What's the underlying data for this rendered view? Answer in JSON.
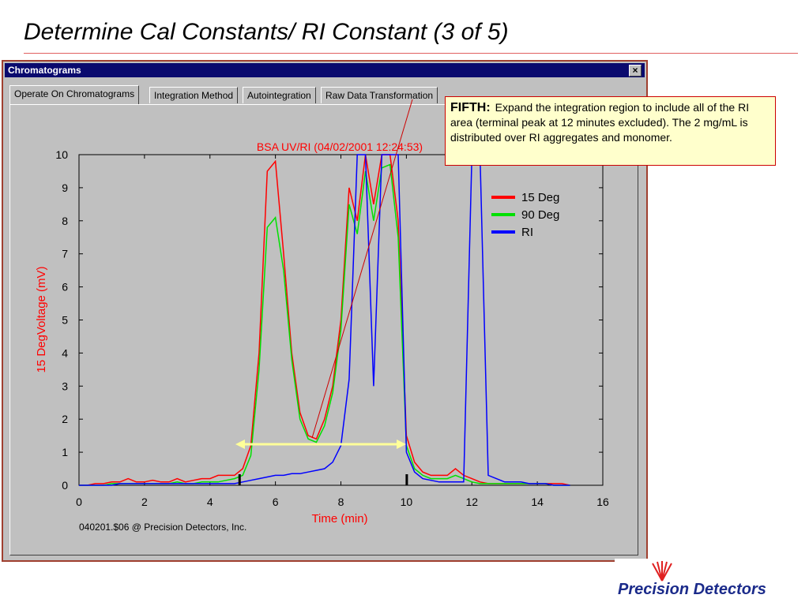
{
  "slide": {
    "title": "Determine Cal Constants/ RI Constant  (3 of 5)"
  },
  "window": {
    "title": "Chromatograms",
    "close": "×",
    "tabs": [
      "Operate On Chromatograms",
      "Integration Method",
      "Autointegration",
      "Raw Data Transformation"
    ],
    "footer": "040201.$06  @ Precision Detectors, Inc."
  },
  "chart_data": {
    "type": "line",
    "title": "BSA UV/RI (04/02/2001 12:24:53)",
    "x_label": "Time (min)",
    "y_label": "15 DegVoltage (mV)",
    "xlim": [
      0,
      16
    ],
    "ylim": [
      0,
      10
    ],
    "xticks": [
      0,
      2,
      4,
      6,
      8,
      10,
      12,
      14,
      16
    ],
    "yticks": [
      0,
      1,
      2,
      3,
      4,
      5,
      6,
      7,
      8,
      9,
      10
    ],
    "x": [
      0,
      0.25,
      0.5,
      0.75,
      1,
      1.25,
      1.5,
      1.75,
      2,
      2.25,
      2.5,
      2.75,
      3,
      3.25,
      3.5,
      3.75,
      4,
      4.25,
      4.5,
      4.75,
      5,
      5.25,
      5.5,
      5.75,
      6,
      6.25,
      6.5,
      6.75,
      7,
      7.25,
      7.5,
      7.75,
      8,
      8.25,
      8.5,
      8.75,
      9,
      9.25,
      9.5,
      9.75,
      10,
      10.25,
      10.5,
      10.75,
      11,
      11.25,
      11.5,
      11.75,
      12,
      12.25,
      12.5,
      12.75,
      13,
      13.25,
      13.5,
      13.75,
      14,
      14.25,
      14.5,
      14.75,
      15
    ],
    "series": [
      {
        "name": "15 Deg",
        "color": "#ff0000",
        "values": [
          0,
          0,
          0.05,
          0.05,
          0.1,
          0.1,
          0.2,
          0.1,
          0.1,
          0.15,
          0.1,
          0.1,
          0.2,
          0.1,
          0.15,
          0.2,
          0.2,
          0.3,
          0.3,
          0.3,
          0.5,
          1.2,
          4,
          9.5,
          9.8,
          7,
          4,
          2.2,
          1.5,
          1.4,
          2,
          3,
          5,
          9,
          8,
          10,
          8.5,
          10,
          10,
          8,
          1.5,
          0.7,
          0.4,
          0.3,
          0.3,
          0.3,
          0.5,
          0.3,
          0.2,
          0.1,
          0.05,
          0.05,
          0.05,
          0.05,
          0.05,
          0.05,
          0.05,
          0.05,
          0.05,
          0.05,
          0
        ]
      },
      {
        "name": "90 Deg",
        "color": "#00e000",
        "values": [
          0,
          0,
          0,
          0,
          0.05,
          0.05,
          0.05,
          0.05,
          0.05,
          0.05,
          0.05,
          0.05,
          0.1,
          0.05,
          0.05,
          0.1,
          0.1,
          0.1,
          0.15,
          0.2,
          0.3,
          0.9,
          3.5,
          7.8,
          8.1,
          6.5,
          3.8,
          2,
          1.4,
          1.3,
          1.8,
          2.8,
          4.7,
          8.5,
          7.6,
          9.5,
          8,
          9.6,
          9.7,
          7.5,
          1.2,
          0.5,
          0.3,
          0.2,
          0.2,
          0.2,
          0.3,
          0.2,
          0.1,
          0.05,
          0.05,
          0.05,
          0.05,
          0.05,
          0.05,
          0.05,
          0.05,
          0.05,
          0,
          0,
          0
        ]
      },
      {
        "name": "RI",
        "color": "#0000ff",
        "values": [
          0,
          0,
          0,
          0,
          0,
          0.05,
          0.05,
          0.05,
          0.05,
          0.05,
          0.05,
          0.05,
          0.05,
          0.05,
          0.05,
          0.05,
          0.05,
          0.05,
          0.05,
          0.05,
          0.1,
          0.15,
          0.2,
          0.25,
          0.3,
          0.3,
          0.35,
          0.35,
          0.4,
          0.45,
          0.5,
          0.7,
          1.2,
          3.2,
          10,
          10,
          3,
          10,
          10,
          10,
          1,
          0.4,
          0.2,
          0.15,
          0.1,
          0.1,
          0.1,
          0.1,
          10,
          10,
          0.3,
          0.2,
          0.1,
          0.1,
          0.1,
          0.05,
          0.05,
          0.05,
          0,
          0,
          0
        ]
      }
    ]
  },
  "callout": {
    "heading": "FIFTH:",
    "text": "Expand the integration region to include all of the RI area (terminal peak at 12 minutes excluded). The 2 mg/mL is distributed over RI aggregates and monomer."
  },
  "logo": {
    "text": "Precision Detectors"
  }
}
